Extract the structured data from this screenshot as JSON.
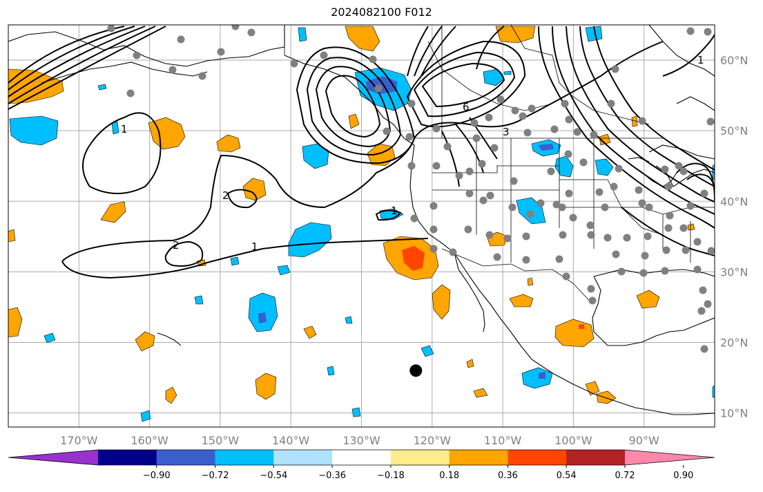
{
  "title": "2024082100 F012",
  "map": {
    "lon_range": [
      -180,
      -80
    ],
    "lat_range": [
      8,
      65
    ],
    "lat_ticks": [
      {
        "value": 10,
        "label": "10°N"
      },
      {
        "value": 20,
        "label": "20°N"
      },
      {
        "value": 30,
        "label": "30°N"
      },
      {
        "value": 40,
        "label": "40°N"
      },
      {
        "value": 50,
        "label": "50°N"
      },
      {
        "value": 60,
        "label": "60°N"
      }
    ],
    "lon_ticks": [
      {
        "value": -170,
        "label": "170°W"
      },
      {
        "value": -160,
        "label": "160°W"
      },
      {
        "value": -150,
        "label": "150°W"
      },
      {
        "value": -140,
        "label": "140°W"
      },
      {
        "value": -130,
        "label": "130°W"
      },
      {
        "value": -120,
        "label": "120°W"
      },
      {
        "value": -110,
        "label": "110°W"
      },
      {
        "value": -100,
        "label": "100°W"
      },
      {
        "value": -90,
        "label": "90°W"
      }
    ],
    "grid": true,
    "station_marker": {
      "lon": -122.3,
      "lat": 16
    }
  },
  "colorbar": {
    "colors": [
      "#9932cc",
      "#00008b",
      "#3a5fcd",
      "#00bfff",
      "#b0e2ff",
      "#ffffff",
      "#ffec8b",
      "#ffa500",
      "#ff4500",
      "#b22222",
      "#ff88aa"
    ],
    "ticks": [
      {
        "value": -0.9,
        "label": "−0.90"
      },
      {
        "value": -0.72,
        "label": "−0.72"
      },
      {
        "value": -0.54,
        "label": "−0.54"
      },
      {
        "value": -0.36,
        "label": "−0.36"
      },
      {
        "value": -0.18,
        "label": "−0.18"
      },
      {
        "value": 0.18,
        "label": "0.18"
      },
      {
        "value": 0.36,
        "label": "0.36"
      },
      {
        "value": 0.54,
        "label": "0.54"
      },
      {
        "value": 0.72,
        "label": "0.72"
      },
      {
        "value": 0.9,
        "label": "0.90"
      }
    ]
  },
  "contour_labels": [
    "1",
    "2",
    "2",
    "1",
    "3",
    "6",
    "1",
    "1"
  ]
}
